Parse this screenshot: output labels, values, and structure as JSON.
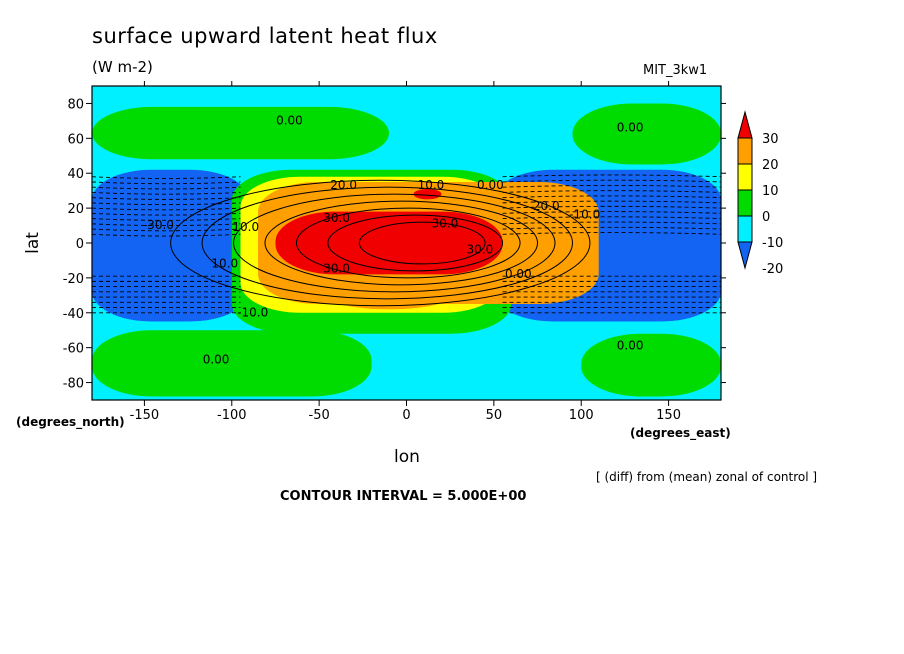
{
  "chart_data": {
    "type": "heatmap",
    "title": "surface upward latent heat flux",
    "units": "(W m-2)",
    "model": "MIT_3kw1",
    "xlabel": "lon",
    "ylabel": "lat",
    "x_unit_label": "(degrees_east)",
    "y_unit_label": "(degrees_north)",
    "note": "[ (diff) from (mean) zonal of control ]",
    "contour_interval": "CONTOUR INTERVAL = 5.000E+00",
    "xlim": [
      -180,
      180
    ],
    "ylim": [
      -90,
      90
    ],
    "xticks": [
      -150,
      -100,
      -50,
      0,
      50,
      100,
      150
    ],
    "xtick_labels": [
      "-150",
      "-100",
      "-50",
      "0",
      "50",
      "100",
      "150"
    ],
    "yticks": [
      80,
      60,
      40,
      20,
      0,
      -20,
      -40,
      -60,
      -80
    ],
    "ytick_labels": [
      "80",
      "60",
      "40",
      "20",
      "0",
      "-20",
      "-40",
      "-60",
      "-80"
    ],
    "colorbar": {
      "levels": [
        -30,
        -20,
        -10,
        0,
        10,
        20,
        30,
        40
      ],
      "labels": [
        "30",
        "20",
        "10",
        "0",
        "-10",
        "-20"
      ],
      "colors": [
        "#1464f4",
        "#00f0ff",
        "#00dc00",
        "#ffff00",
        "#ffa000",
        "#f00000"
      ]
    },
    "contour_labels": [
      {
        "text": "0.00",
        "lon": -67,
        "lat": 70
      },
      {
        "text": "0.00",
        "lon": 128,
        "lat": 66
      },
      {
        "text": "20.0",
        "lon": -36,
        "lat": 33
      },
      {
        "text": "10.0",
        "lon": 14,
        "lat": 33
      },
      {
        "text": "0.00",
        "lon": 48,
        "lat": 33
      },
      {
        "text": "20.0",
        "lon": 80,
        "lat": 21
      },
      {
        "text": "30.0",
        "lon": -40,
        "lat": 14
      },
      {
        "text": "10.0",
        "lon": -92,
        "lat": 9
      },
      {
        "text": "-30.0",
        "lon": -142,
        "lat": 10
      },
      {
        "text": "30.0",
        "lon": 22,
        "lat": 11
      },
      {
        "text": "-10.0",
        "lon": 102,
        "lat": 16
      },
      {
        "text": "30.0",
        "lon": 42,
        "lat": -4
      },
      {
        "text": "10.0",
        "lon": -104,
        "lat": -12
      },
      {
        "text": "30.0",
        "lon": -40,
        "lat": -15
      },
      {
        "text": "0.00",
        "lon": 64,
        "lat": -18
      },
      {
        "text": "-10.0",
        "lon": -88,
        "lat": -40
      },
      {
        "text": "0.00",
        "lon": -109,
        "lat": -67
      },
      {
        "text": "0.00",
        "lon": 128,
        "lat": -59
      }
    ],
    "fields": {
      "background": {
        "value": "-10..0",
        "color": "#00f0ff"
      },
      "regions": [
        {
          "level": "0..10",
          "color": "#00dc00",
          "lon": [
            -180,
            -10
          ],
          "lat": [
            48,
            78
          ]
        },
        {
          "level": "0..10",
          "color": "#00dc00",
          "lon": [
            95,
            180
          ],
          "lat": [
            45,
            80
          ]
        },
        {
          "level": "0..10",
          "color": "#00dc00",
          "lon": [
            -180,
            -20
          ],
          "lat": [
            -88,
            -50
          ]
        },
        {
          "level": "0..10",
          "color": "#00dc00",
          "lon": [
            100,
            180
          ],
          "lat": [
            -88,
            -52
          ]
        },
        {
          "level": "-20..-10",
          "color": "#1464f4",
          "lon": [
            -180,
            -90
          ],
          "lat": [
            -45,
            42
          ]
        },
        {
          "level": "-20..-10",
          "color": "#1464f4",
          "lon": [
            50,
            180
          ],
          "lat": [
            -45,
            42
          ]
        },
        {
          "level": "0..10",
          "color": "#00dc00",
          "lon": [
            -100,
            60
          ],
          "lat": [
            -52,
            42
          ]
        },
        {
          "level": "10..20",
          "color": "#ffff00",
          "lon": [
            -95,
            55
          ],
          "lat": [
            -40,
            38
          ]
        },
        {
          "level": "20..30",
          "color": "#ffa000",
          "lon": [
            -85,
            110
          ],
          "lat": [
            -35,
            35
          ]
        },
        {
          "level": "30..40",
          "color": "#f00000",
          "lon": [
            -75,
            55
          ],
          "lat": [
            -18,
            18
          ]
        }
      ]
    }
  }
}
